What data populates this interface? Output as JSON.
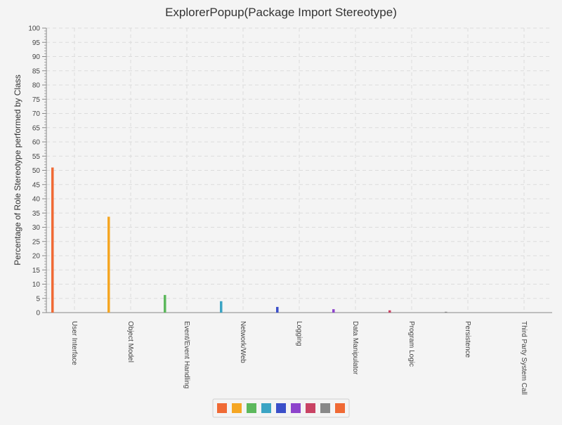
{
  "chart_data": {
    "type": "bar",
    "title": "ExplorerPopup(Package Import Stereotype)",
    "xlabel": "",
    "ylabel": "Percentage of Role Stereotype performed by Class",
    "ylim": [
      0,
      100
    ],
    "y_major_step": 5,
    "y_minor_step": 1,
    "grid": true,
    "legend_placement": "bottom-center",
    "categories": [
      "User Interface",
      "Object Model",
      "Event/Event Handling",
      "Network/Web",
      "Logging",
      "Data Manipulator",
      "Program Logic",
      "Persistence",
      "Third Party System Call"
    ],
    "values": [
      51.0,
      33.7,
      6.2,
      4.0,
      2.0,
      1.2,
      0.8,
      0.3,
      0.0
    ],
    "colors": [
      "#f06a35",
      "#f5a623",
      "#5cb85c",
      "#3ba4c4",
      "#3b4fc9",
      "#8e44cc",
      "#c94364",
      "#888888",
      "#f06a35"
    ]
  }
}
